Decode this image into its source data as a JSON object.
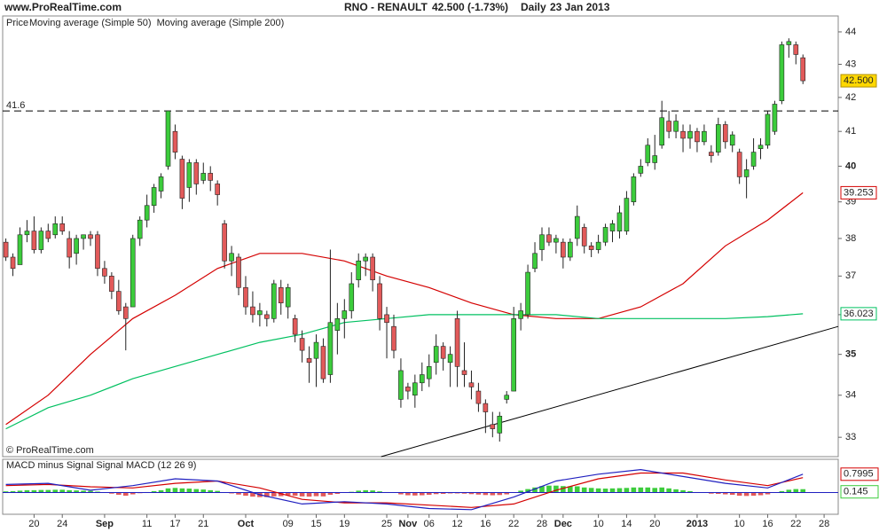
{
  "header": {
    "site": "www.ProRealTime.com",
    "symbol": "RNO - RENAULT",
    "quote": "42.500 (-1.73%)",
    "period": "Daily",
    "date": "23 Jan 2013"
  },
  "footer": "© ProRealTime.com",
  "chart_data": [
    {
      "type": "candlestick",
      "legend_title": "Price",
      "log_scale": true,
      "ylim": [
        32.55,
        44.5
      ],
      "yticks": [
        33,
        34,
        35,
        36,
        37,
        38,
        39,
        40,
        41,
        42,
        43,
        44
      ],
      "xlim": [
        -0.2,
        118
      ],
      "xticks": [
        {
          "value": 4,
          "label": "20"
        },
        {
          "value": 8,
          "label": "24"
        },
        {
          "value": 14,
          "label": "Sep"
        },
        {
          "value": 20,
          "label": "11"
        },
        {
          "value": 24,
          "label": "17"
        },
        {
          "value": 28,
          "label": "21"
        },
        {
          "value": 34,
          "label": "Oct"
        },
        {
          "value": 40,
          "label": "09"
        },
        {
          "value": 44,
          "label": "15"
        },
        {
          "value": 48,
          "label": "19"
        },
        {
          "value": 54,
          "label": "25"
        },
        {
          "value": 57,
          "label": "Nov"
        },
        {
          "value": 60,
          "label": "06"
        },
        {
          "value": 64,
          "label": "12"
        },
        {
          "value": 68,
          "label": "16"
        },
        {
          "value": 72,
          "label": "22"
        },
        {
          "value": 76,
          "label": "28"
        },
        {
          "value": 79,
          "label": "Dec"
        },
        {
          "value": 84,
          "label": "10"
        },
        {
          "value": 88,
          "label": "14"
        },
        {
          "value": 92,
          "label": "20"
        },
        {
          "value": 98,
          "label": "2013"
        },
        {
          "value": 104,
          "label": "10"
        },
        {
          "value": 108,
          "label": "16"
        },
        {
          "value": 112,
          "label": "22"
        },
        {
          "value": 116,
          "label": "28"
        }
      ],
      "up_color": "#3ccc3c",
      "down_color": "#e25a5a",
      "open": [
        37.9,
        37.5,
        37.3,
        38.1,
        38.2,
        37.7,
        38.2,
        38.1,
        38.4,
        38.0,
        37.6,
        38.0,
        38.1,
        38.1,
        37.2,
        37.0,
        36.6,
        36.2,
        36.2,
        38.0,
        38.5,
        38.9,
        39.3,
        40.0,
        41.0,
        40.2,
        39.4,
        40.1,
        39.6,
        39.8,
        39.5,
        38.4,
        37.4,
        37.5,
        36.7,
        36.2,
        36.0,
        36.0,
        35.9,
        36.7,
        36.2,
        35.9,
        35.4,
        34.9,
        34.9,
        35.2,
        34.5,
        35.6,
        35.9,
        36.1,
        36.9,
        37.4,
        37.5,
        36.8,
        36.0,
        35.7,
        33.9,
        34.2,
        34.0,
        34.3,
        34.4,
        34.8,
        35.2,
        34.8,
        35.9,
        34.6,
        34.3,
        34.1,
        33.8,
        33.3,
        33.1,
        33.9,
        34.1,
        35.9,
        36.0,
        37.2,
        37.7,
        38.1,
        37.9,
        37.9,
        37.5,
        38.0,
        38.3,
        37.8,
        37.7,
        37.9,
        38.2,
        38.2,
        38.2,
        39.0,
        39.8,
        40.1,
        40.1,
        40.6,
        41.3,
        41.0,
        41.0,
        40.8,
        41.0,
        40.7,
        40.4,
        40.4,
        41.2,
        40.6,
        40.4,
        39.7,
        40.0,
        40.5,
        40.6,
        41.0,
        41.9,
        43.6,
        43.6,
        43.2
      ],
      "high": [
        38.0,
        37.6,
        38.3,
        38.5,
        38.6,
        38.3,
        38.4,
        38.6,
        38.6,
        38.2,
        38.1,
        38.1,
        38.2,
        38.2,
        37.4,
        37.1,
        36.9,
        36.3,
        38.1,
        38.6,
        39.2,
        39.5,
        39.8,
        41.6,
        41.2,
        40.3,
        40.2,
        40.2,
        40.1,
        40.0,
        39.6,
        38.5,
        37.8,
        37.6,
        37.0,
        36.6,
        36.3,
        36.1,
        36.9,
        36.9,
        36.8,
        36.0,
        35.6,
        35.2,
        35.5,
        35.4,
        37.7,
        36.3,
        36.4,
        37.1,
        37.6,
        37.6,
        37.6,
        37.0,
        36.2,
        36.0,
        34.9,
        34.3,
        34.5,
        34.8,
        35.0,
        35.5,
        35.3,
        35.2,
        36.1,
        35.3,
        34.6,
        34.3,
        33.9,
        33.6,
        33.6,
        34.1,
        36.2,
        36.3,
        37.3,
        37.9,
        38.3,
        38.3,
        38.1,
        38.0,
        38.0,
        38.9,
        38.4,
        37.9,
        38.1,
        38.4,
        38.5,
        38.9,
        39.3,
        39.8,
        40.2,
        40.8,
        40.9,
        41.9,
        41.6,
        41.5,
        41.2,
        41.2,
        41.1,
        41.2,
        40.6,
        41.4,
        41.3,
        41.0,
        40.5,
        40.2,
        40.8,
        40.8,
        41.6,
        41.9,
        43.7,
        43.8,
        43.7,
        43.3
      ],
      "low": [
        37.4,
        37.0,
        37.3,
        37.9,
        37.6,
        37.6,
        37.9,
        38.0,
        38.1,
        37.2,
        37.3,
        37.7,
        37.8,
        37.0,
        36.8,
        36.4,
        36.0,
        35.1,
        36.2,
        37.8,
        38.3,
        38.7,
        39.1,
        39.9,
        40.2,
        38.8,
        39.0,
        39.2,
        39.5,
        39.3,
        38.9,
        37.2,
        37.0,
        36.5,
        36.0,
        35.8,
        35.7,
        35.7,
        35.8,
        36.0,
        35.9,
        35.3,
        34.8,
        34.3,
        34.2,
        34.3,
        34.3,
        35.0,
        35.4,
        35.9,
        36.7,
        37.0,
        36.6,
        35.6,
        34.9,
        34.9,
        33.7,
        33.9,
        33.7,
        34.1,
        34.2,
        34.5,
        34.6,
        34.2,
        34.2,
        34.2,
        33.9,
        33.6,
        33.1,
        33.0,
        32.9,
        33.8,
        34.1,
        35.6,
        35.9,
        37.1,
        37.4,
        37.8,
        37.6,
        37.2,
        37.4,
        37.8,
        37.6,
        37.5,
        37.6,
        37.8,
        37.9,
        38.0,
        38.1,
        38.9,
        39.7,
        40.0,
        39.9,
        40.5,
        40.8,
        40.8,
        40.4,
        40.5,
        40.4,
        40.6,
        40.1,
        40.3,
        40.5,
        40.4,
        39.5,
        39.1,
        39.9,
        40.2,
        40.5,
        40.9,
        41.8,
        43.2,
        43.0,
        42.4
      ],
      "close": [
        37.5,
        37.2,
        38.1,
        38.2,
        37.7,
        38.2,
        38.0,
        38.4,
        38.2,
        37.5,
        38.0,
        38.1,
        38.0,
        37.2,
        37.0,
        36.6,
        36.1,
        35.9,
        38.0,
        38.5,
        38.9,
        39.4,
        39.7,
        41.6,
        40.4,
        39.1,
        40.1,
        39.5,
        39.8,
        39.6,
        39.2,
        37.4,
        37.6,
        36.7,
        36.2,
        36.0,
        36.1,
        35.9,
        36.8,
        36.3,
        36.7,
        35.5,
        35.1,
        34.8,
        35.3,
        34.4,
        35.8,
        35.9,
        36.1,
        36.8,
        37.4,
        37.5,
        36.9,
        35.9,
        35.8,
        35.1,
        34.6,
        34.1,
        34.3,
        34.5,
        34.7,
        35.2,
        34.9,
        35.0,
        34.7,
        34.5,
        34.2,
        33.8,
        33.6,
        33.2,
        33.5,
        34.0,
        35.9,
        36.1,
        37.1,
        37.6,
        38.1,
        37.9,
        38.0,
        37.5,
        37.9,
        38.6,
        37.8,
        37.7,
        37.9,
        38.3,
        38.4,
        38.7,
        39.1,
        39.7,
        40.0,
        40.6,
        40.3,
        41.4,
        41.0,
        41.3,
        40.8,
        41.0,
        40.7,
        41.0,
        40.3,
        41.2,
        40.7,
        40.9,
        39.7,
        39.9,
        40.4,
        40.6,
        41.5,
        41.8,
        43.6,
        43.7,
        43.3,
        42.5
      ],
      "last_label": "42.500",
      "series": [
        {
          "name": "Moving average (Simple 50)",
          "color": "#d40000",
          "x": [
            0,
            6,
            12,
            18,
            24,
            30,
            36,
            42,
            48,
            54,
            60,
            66,
            72,
            78,
            84,
            90,
            96,
            102,
            108,
            113
          ],
          "values": [
            33.3,
            34.0,
            35.0,
            35.9,
            36.5,
            37.2,
            37.6,
            37.6,
            37.4,
            37.0,
            36.7,
            36.3,
            36.0,
            35.9,
            35.9,
            36.2,
            36.8,
            37.8,
            38.5,
            39.253
          ]
        },
        {
          "name": "Moving average (Simple 200)",
          "color": "#00c060",
          "x": [
            0,
            6,
            12,
            18,
            24,
            30,
            36,
            42,
            48,
            54,
            60,
            66,
            72,
            78,
            84,
            90,
            96,
            102,
            108,
            113
          ],
          "values": [
            33.2,
            33.7,
            34.0,
            34.4,
            34.7,
            35.0,
            35.3,
            35.5,
            35.8,
            35.9,
            36.0,
            36.0,
            36.0,
            36.0,
            35.9,
            35.9,
            35.9,
            35.9,
            35.95,
            36.023
          ]
        }
      ],
      "level": 41.6,
      "trendline": {
        "x": [
          53.2,
          118
        ],
        "y": [
          32.55,
          35.7
        ]
      }
    },
    {
      "type": "macd",
      "xlim": [
        -0.2,
        118
      ],
      "ylim": [
        -0.95,
        1.45
      ],
      "histogram": {
        "name": "MACD minus Signal",
        "color": "#3ccc3c",
        "neg_color": "#e25a5a",
        "values": [
          0.05,
          0.06,
          0.08,
          0.1,
          0.1,
          0.11,
          0.11,
          0.12,
          0.12,
          0.1,
          0.09,
          0.08,
          0.07,
          0.04,
          0.0,
          -0.05,
          -0.1,
          -0.14,
          -0.08,
          -0.03,
          0.02,
          0.06,
          0.1,
          0.18,
          0.2,
          0.18,
          0.17,
          0.15,
          0.13,
          0.1,
          0.07,
          0.0,
          -0.04,
          -0.09,
          -0.14,
          -0.18,
          -0.2,
          -0.2,
          -0.17,
          -0.16,
          -0.12,
          -0.14,
          -0.17,
          -0.18,
          -0.16,
          -0.17,
          -0.1,
          -0.06,
          -0.02,
          0.03,
          0.08,
          0.1,
          0.09,
          0.05,
          0.02,
          -0.02,
          -0.08,
          -0.12,
          -0.13,
          -0.12,
          -0.1,
          -0.07,
          -0.06,
          -0.04,
          -0.04,
          -0.05,
          -0.07,
          -0.09,
          -0.11,
          -0.12,
          -0.11,
          -0.08,
          0.0,
          0.08,
          0.15,
          0.22,
          0.28,
          0.3,
          0.3,
          0.28,
          0.27,
          0.27,
          0.22,
          0.2,
          0.18,
          0.17,
          0.18,
          0.19,
          0.2,
          0.22,
          0.22,
          0.22,
          0.2,
          0.22,
          0.18,
          0.14,
          0.1,
          0.06,
          0.02,
          -0.02,
          -0.05,
          -0.06,
          -0.08,
          -0.1,
          -0.14,
          -0.15,
          -0.14,
          -0.12,
          -0.08,
          -0.02,
          0.06,
          0.12,
          0.15,
          0.145
        ]
      },
      "series": [
        {
          "name": "Signal",
          "color": "#d40000",
          "x": [
            0,
            6,
            12,
            18,
            24,
            30,
            36,
            42,
            48,
            54,
            60,
            66,
            72,
            78,
            84,
            90,
            96,
            102,
            108,
            113
          ],
          "values": [
            0.3,
            0.35,
            0.25,
            0.2,
            0.4,
            0.5,
            0.2,
            -0.3,
            -0.45,
            -0.45,
            -0.55,
            -0.65,
            -0.5,
            0.1,
            0.6,
            0.85,
            0.85,
            0.55,
            0.3,
            0.65
          ]
        },
        {
          "name": "MACD (12 26 9)",
          "color": "#2020c0",
          "x": [
            0,
            6,
            12,
            18,
            24,
            30,
            36,
            42,
            48,
            54,
            60,
            66,
            72,
            78,
            84,
            90,
            96,
            102,
            108,
            113
          ],
          "values": [
            0.35,
            0.4,
            0.1,
            0.3,
            0.6,
            0.5,
            -0.1,
            -0.5,
            -0.4,
            -0.5,
            -0.7,
            -0.75,
            -0.2,
            0.5,
            0.8,
            1.0,
            0.7,
            0.4,
            0.2,
            0.7995
          ]
        }
      ]
    }
  ]
}
